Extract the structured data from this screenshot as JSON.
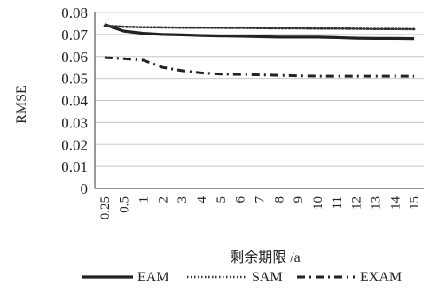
{
  "chart_data": {
    "type": "line",
    "title": "",
    "xlabel": "剩余期限 /a",
    "ylabel": "RMSE",
    "categories": [
      "0.25",
      "0.5",
      "1",
      "2",
      "3",
      "4",
      "5",
      "6",
      "7",
      "8",
      "9",
      "10",
      "11",
      "12",
      "13",
      "14",
      "15"
    ],
    "yticks": [
      "0",
      "0.01",
      "0.02",
      "0.03",
      "0.04",
      "0.05",
      "0.06",
      "0.07",
      "0.08"
    ],
    "ylim": [
      0,
      0.08
    ],
    "grid": true,
    "legend_position": "bottom",
    "series": [
      {
        "name": "EAM",
        "style": "solid",
        "color": "#222222",
        "values": [
          0.0745,
          0.0715,
          0.0705,
          0.07,
          0.0698,
          0.0695,
          0.0693,
          0.0692,
          0.069,
          0.0688,
          0.0688,
          0.0688,
          0.0686,
          0.0683,
          0.0682,
          0.0682,
          0.0681
        ]
      },
      {
        "name": "SAM",
        "style": "dotted",
        "color": "#333333",
        "values": [
          0.074,
          0.0735,
          0.0733,
          0.0732,
          0.0731,
          0.0731,
          0.073,
          0.073,
          0.0729,
          0.0728,
          0.0728,
          0.0727,
          0.0727,
          0.0726,
          0.0725,
          0.0725,
          0.0724
        ]
      },
      {
        "name": "EXAM",
        "style": "dashdot",
        "color": "#222222",
        "values": [
          0.0595,
          0.059,
          0.0583,
          0.055,
          0.0535,
          0.0525,
          0.052,
          0.0518,
          0.0516,
          0.0514,
          0.0512,
          0.051,
          0.051,
          0.051,
          0.051,
          0.051,
          0.051
        ]
      }
    ]
  }
}
